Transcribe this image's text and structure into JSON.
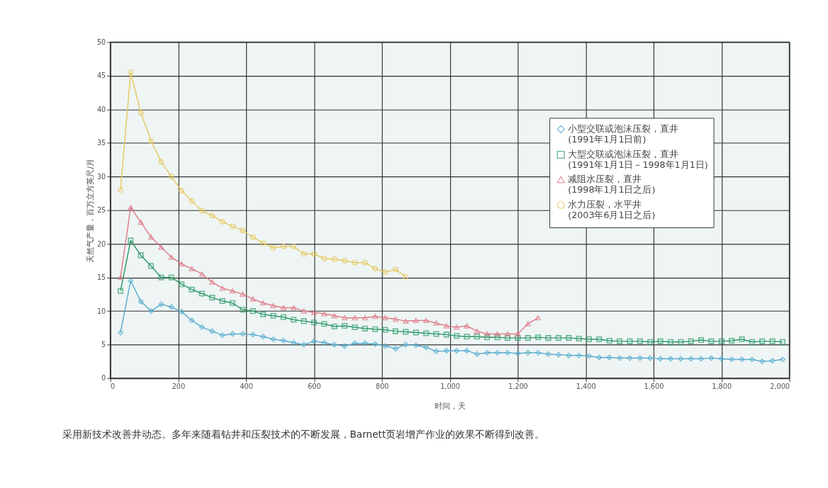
{
  "chart_data": {
    "type": "line",
    "xlabel": "时间，天",
    "ylabel": "天然气产量，百万立方英尺/月",
    "annotations": [
      "采用新技术改善井动态。多年来随着钻井和压裂技术的不断发展，Barnett页岩增产作业的效果不断得到改善。"
    ],
    "xlim": [
      0,
      2000
    ],
    "ylim": [
      0,
      50
    ],
    "xticks": [
      0,
      200,
      400,
      600,
      800,
      {
        "value": 1000,
        "label": "1,000"
      },
      {
        "value": 1200,
        "label": "1,200"
      },
      {
        "value": 1400,
        "label": "1,400"
      },
      {
        "value": 1600,
        "label": "1,600"
      },
      {
        "value": 1800,
        "label": "1,800"
      },
      {
        "value": 2000,
        "label": "2,000"
      }
    ],
    "yticks": [
      0,
      5,
      10,
      15,
      20,
      25,
      30,
      35,
      40,
      45,
      50
    ],
    "grid": true,
    "legend": "top right",
    "line_style": "solid",
    "series": [
      {
        "name": "小型交联或泡沫压裂，直井\n(1991年1月1日前)",
        "color": "#5aaed0",
        "marker": "diamond",
        "x": [
          30,
          60,
          90,
          120,
          150,
          180,
          210,
          240,
          270,
          300,
          330,
          360,
          390,
          420,
          450,
          480,
          510,
          540,
          570,
          600,
          630,
          660,
          690,
          720,
          750,
          780,
          810,
          840,
          870,
          900,
          930,
          960,
          990,
          1020,
          1050,
          1080,
          1110,
          1140,
          1170,
          1200,
          1230,
          1260,
          1290,
          1320,
          1350,
          1380,
          1410,
          1440,
          1470,
          1500,
          1530,
          1560,
          1590,
          1620,
          1650,
          1680,
          1710,
          1740,
          1770,
          1800,
          1830,
          1860,
          1890,
          1920,
          1950,
          1980
        ],
        "values": [
          6.8,
          14.5,
          11.4,
          10,
          11,
          10.6,
          9.9,
          8.6,
          7.6,
          7,
          6.4,
          6.6,
          6.6,
          6.5,
          6.2,
          5.8,
          5.6,
          5.3,
          5,
          5.5,
          5.3,
          5,
          4.8,
          5.2,
          5.2,
          5.1,
          4.8,
          4.4,
          5,
          4.9,
          4.6,
          4,
          4.1,
          4.1,
          4.1,
          3.6,
          3.8,
          3.8,
          3.8,
          3.7,
          3.8,
          3.8,
          3.6,
          3.5,
          3.4,
          3.4,
          3.3,
          3.1,
          3.1,
          3,
          3,
          3,
          3,
          2.9,
          2.9,
          2.9,
          2.9,
          2.9,
          3,
          2.9,
          2.8,
          2.8,
          2.8,
          2.5,
          2.6,
          2.8
        ]
      },
      {
        "name": "大型交联或泡沫压裂，直井\n(1991年1月1日－1998年1月1日)",
        "color": "#2e9a6a",
        "marker": "square",
        "x": [
          30,
          60,
          90,
          120,
          150,
          180,
          210,
          240,
          270,
          300,
          330,
          360,
          390,
          420,
          450,
          480,
          510,
          540,
          570,
          600,
          630,
          660,
          690,
          720,
          750,
          780,
          810,
          840,
          870,
          900,
          930,
          960,
          990,
          1020,
          1050,
          1080,
          1110,
          1140,
          1170,
          1200,
          1230,
          1260,
          1290,
          1320,
          1350,
          1380,
          1410,
          1440,
          1470,
          1500,
          1530,
          1560,
          1590,
          1620,
          1650,
          1680,
          1710,
          1740,
          1770,
          1800,
          1830,
          1860,
          1890,
          1920,
          1950,
          1980
        ],
        "values": [
          13,
          20.5,
          18.3,
          16.7,
          15,
          15,
          14,
          13.2,
          12.6,
          12,
          11.5,
          11.2,
          10.2,
          10,
          9.5,
          9.3,
          9.1,
          8.7,
          8.5,
          8.3,
          8.1,
          7.7,
          7.8,
          7.6,
          7.4,
          7.3,
          7.2,
          7,
          6.9,
          6.8,
          6.7,
          6.6,
          6.5,
          6.3,
          6.2,
          6.2,
          6.1,
          6.1,
          6,
          6,
          6,
          6.1,
          6,
          6,
          6,
          5.9,
          5.8,
          5.8,
          5.6,
          5.5,
          5.5,
          5.5,
          5.4,
          5.5,
          5.4,
          5.4,
          5.5,
          5.7,
          5.5,
          5.5,
          5.6,
          5.8,
          5.4,
          5.5,
          5.5,
          5.4
        ]
      },
      {
        "name": "减阻水压裂，直井\n(1998年1月1日之后)",
        "color": "#e07b8a",
        "marker": "triangle",
        "x": [
          30,
          60,
          90,
          120,
          150,
          180,
          210,
          240,
          270,
          300,
          330,
          360,
          390,
          420,
          450,
          480,
          510,
          540,
          570,
          600,
          630,
          660,
          690,
          720,
          750,
          780,
          810,
          840,
          870,
          900,
          930,
          960,
          990,
          1020,
          1050,
          1080,
          1110,
          1140,
          1170,
          1200,
          1230,
          1260
        ],
        "values": [
          15,
          25.4,
          23.2,
          21,
          19.5,
          18,
          17,
          16.3,
          15.5,
          14.3,
          13.4,
          13,
          12.5,
          11.8,
          11.2,
          10.8,
          10.5,
          10.5,
          10,
          9.8,
          9.6,
          9.3,
          9,
          9,
          9,
          9.2,
          9,
          8.8,
          8.5,
          8.6,
          8.6,
          8.2,
          7.8,
          7.6,
          7.8,
          7,
          6.6,
          6.6,
          6.6,
          6.6,
          8.1,
          9
        ]
      },
      {
        "name": "水力压裂，水平井\n(2003年6月1日之后)",
        "color": "#e8c860",
        "marker": "circle",
        "x": [
          30,
          60,
          90,
          120,
          150,
          180,
          210,
          240,
          270,
          300,
          330,
          360,
          390,
          420,
          450,
          480,
          510,
          540,
          570,
          600,
          630,
          660,
          690,
          720,
          750,
          780,
          810,
          840,
          870
        ],
        "values": [
          28,
          45.5,
          39.5,
          35.3,
          32.2,
          30,
          27.9,
          26.4,
          24.9,
          24.2,
          23.3,
          22.6,
          22,
          21,
          20.1,
          19.4,
          19.6,
          19.6,
          18.5,
          18.5,
          17.8,
          17.7,
          17.5,
          17.2,
          17.2,
          16.3,
          15.8,
          16.2,
          15.1
        ]
      }
    ]
  }
}
